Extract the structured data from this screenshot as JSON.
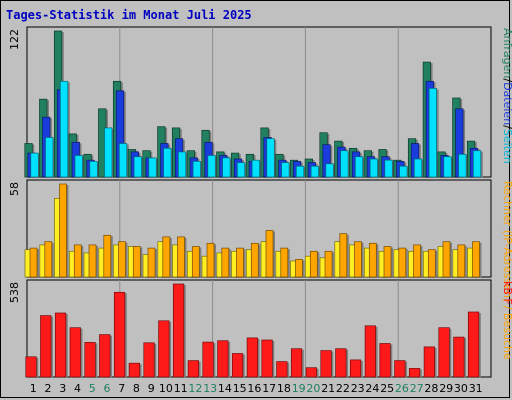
{
  "title": "Tages-Statistik im Monat Juli 2025",
  "colors": {
    "background": "#c0c0c0",
    "panel_border": "#000000",
    "gridline": "#8c8c8c",
    "title": "#0000c0",
    "weekday_label": "#000000",
    "weekend_label": "#208060",
    "hits": "#208060",
    "files": "#1a3cdc",
    "pages": "#00e0ff",
    "visits": "#ffa500",
    "sites": "#ffee22",
    "kbytes": "#ff1a1a"
  },
  "chart_data": [
    {
      "type": "bar",
      "panel": "top",
      "ymax_label": "122",
      "right_label_parts": [
        {
          "text": "Anfragen",
          "color": "#208060"
        },
        {
          "text": "/",
          "color": "#000000"
        },
        {
          "text": "Dateien",
          "color": "#1a3cdc"
        },
        {
          "text": "/",
          "color": "#000000"
        },
        {
          "text": "Seiten",
          "color": "#00b8d8"
        }
      ],
      "categories": [
        "1",
        "2",
        "3",
        "4",
        "5",
        "6",
        "7",
        "8",
        "9",
        "10",
        "11",
        "12",
        "13",
        "14",
        "15",
        "16",
        "17",
        "18",
        "19",
        "20",
        "21",
        "22",
        "23",
        "24",
        "25",
        "26",
        "27",
        "28",
        "29",
        "30",
        "31"
      ],
      "weekend_days": [
        "5",
        "6",
        "12",
        "13",
        "19",
        "20",
        "26",
        "27"
      ],
      "ylim": [
        0,
        122
      ],
      "series": [
        {
          "key": "hits",
          "values": [
            28,
            65,
            122,
            36,
            19,
            57,
            80,
            23,
            22,
            42,
            41,
            22,
            39,
            21,
            20,
            19,
            41,
            19,
            14,
            15,
            37,
            30,
            24,
            22,
            23,
            14,
            32,
            96,
            21,
            66,
            30
          ]
        },
        {
          "key": "files",
          "values": [
            20,
            50,
            73,
            29,
            14,
            0,
            72,
            21,
            16,
            28,
            32,
            16,
            29,
            18,
            15,
            13,
            33,
            14,
            13,
            12,
            27,
            25,
            21,
            17,
            17,
            13,
            28,
            80,
            18,
            57,
            24
          ]
        },
        {
          "key": "pages",
          "values": [
            20,
            33,
            80,
            18,
            13,
            41,
            28,
            17,
            16,
            24,
            21,
            13,
            18,
            16,
            12,
            14,
            32,
            12,
            9,
            9,
            11,
            22,
            17,
            15,
            14,
            9,
            15,
            74,
            17,
            19,
            22
          ]
        }
      ]
    },
    {
      "type": "bar",
      "panel": "middle",
      "ymax_label": "58",
      "right_label_parts": [
        {
          "text": "Rechner (IP-Adressen) / Besuche",
          "color": "#ffa500"
        }
      ],
      "categories": [
        "1",
        "2",
        "3",
        "4",
        "5",
        "6",
        "7",
        "8",
        "9",
        "10",
        "11",
        "12",
        "13",
        "14",
        "15",
        "16",
        "17",
        "18",
        "19",
        "20",
        "21",
        "22",
        "23",
        "24",
        "25",
        "26",
        "27",
        "28",
        "29",
        "30",
        "31"
      ],
      "ylim": [
        0,
        58
      ],
      "series": [
        {
          "key": "sites",
          "values": [
            17,
            20,
            49,
            16,
            15,
            18,
            20,
            19,
            14,
            22,
            20,
            16,
            13,
            15,
            16,
            17,
            22,
            16,
            10,
            13,
            12,
            22,
            20,
            18,
            16,
            17,
            16,
            16,
            19,
            17,
            18
          ]
        },
        {
          "key": "visits",
          "values": [
            18,
            22,
            58,
            20,
            20,
            26,
            22,
            19,
            18,
            25,
            25,
            19,
            21,
            18,
            18,
            21,
            29,
            18,
            11,
            16,
            16,
            27,
            22,
            21,
            19,
            18,
            20,
            17,
            22,
            20,
            22
          ]
        }
      ]
    },
    {
      "type": "bar",
      "panel": "bottom",
      "ymax_label": "538",
      "right_label_parts": [
        {
          "text": "kB F",
          "color": "#ff1a1a"
        }
      ],
      "categories": [
        "1",
        "2",
        "3",
        "4",
        "5",
        "6",
        "7",
        "8",
        "9",
        "10",
        "11",
        "12",
        "13",
        "14",
        "15",
        "16",
        "17",
        "18",
        "19",
        "20",
        "21",
        "22",
        "23",
        "24",
        "25",
        "26",
        "27",
        "28",
        "29",
        "30",
        "31"
      ],
      "ylim": [
        0,
        538
      ],
      "series": [
        {
          "key": "kbytes",
          "values": [
            117,
            355,
            370,
            285,
            200,
            245,
            490,
            80,
            198,
            325,
            538,
            95,
            202,
            210,
            136,
            226,
            214,
            89,
            164,
            54,
            153,
            164,
            99,
            296,
            194,
            95,
            50,
            174,
            285,
            231,
            376
          ]
        }
      ]
    }
  ]
}
